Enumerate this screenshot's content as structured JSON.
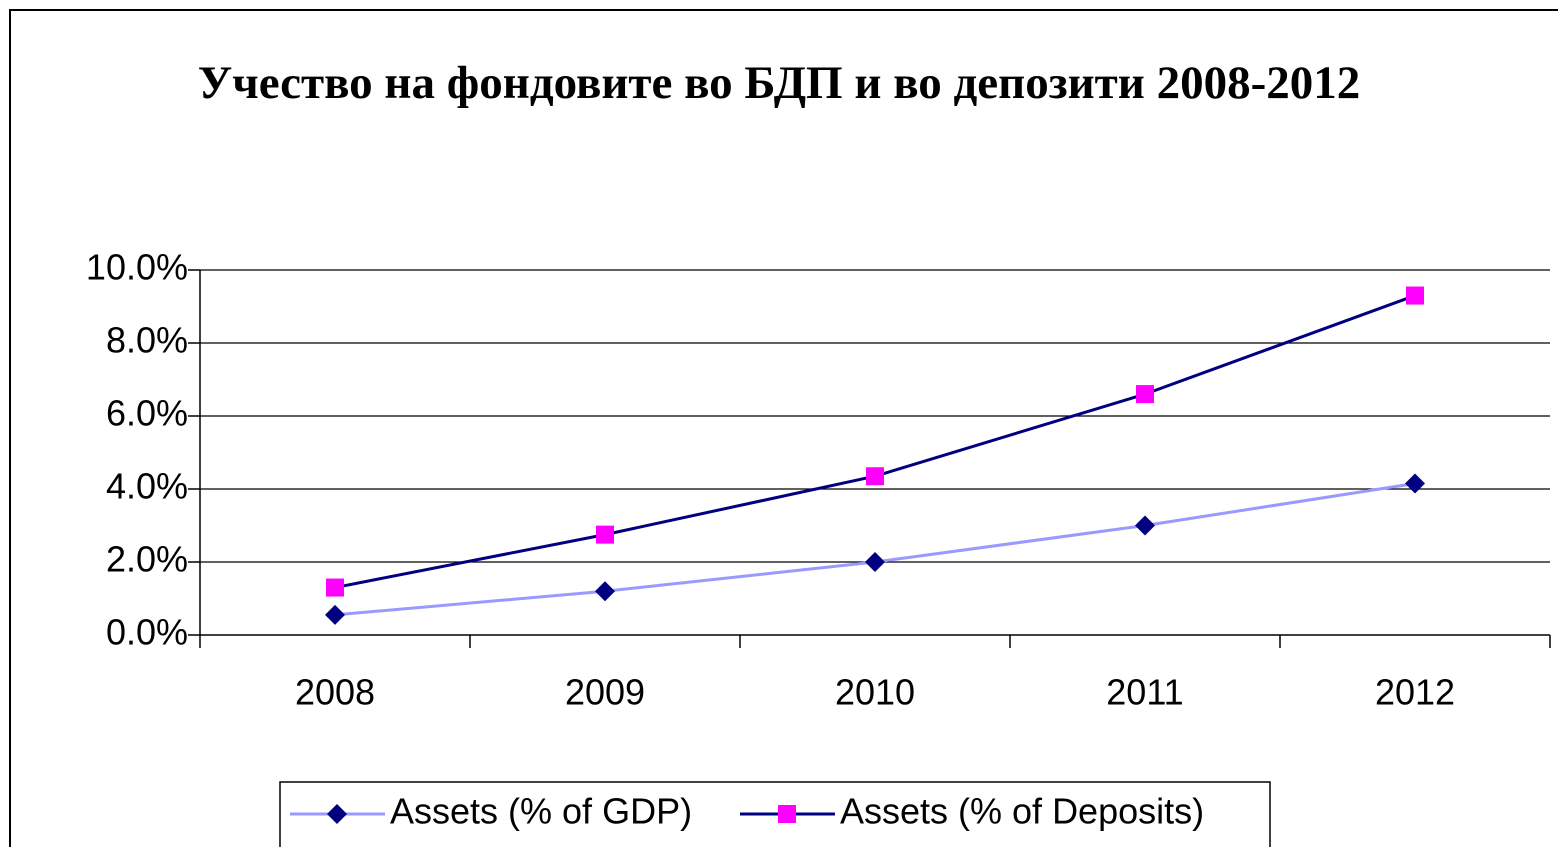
{
  "chart_data": {
    "type": "line",
    "title": "Учество на фондовите во БДП и во депозити 2008-2012",
    "categories": [
      "2008",
      "2009",
      "2010",
      "2011",
      "2012"
    ],
    "series": [
      {
        "name": "Assets (% of GDP)",
        "color": "#9999ff",
        "marker_color": "#000080",
        "marker": "diamond",
        "values": [
          0.55,
          1.2,
          2.0,
          3.0,
          4.15
        ]
      },
      {
        "name": "Assets (% of Deposits)",
        "color": "#000080",
        "marker_color": "#ff00ff",
        "marker": "square",
        "values": [
          1.3,
          2.75,
          4.35,
          6.6,
          9.3
        ]
      }
    ],
    "ylim": [
      0,
      10
    ],
    "yticks": [
      {
        "value": 0,
        "label": "0.0%"
      },
      {
        "value": 2,
        "label": "2.0%"
      },
      {
        "value": 4,
        "label": "4.0%"
      },
      {
        "value": 6,
        "label": "6.0%"
      },
      {
        "value": 8,
        "label": "8.0%"
      },
      {
        "value": 10,
        "label": "10.0%"
      }
    ],
    "grid": true,
    "legend": "bottom"
  }
}
